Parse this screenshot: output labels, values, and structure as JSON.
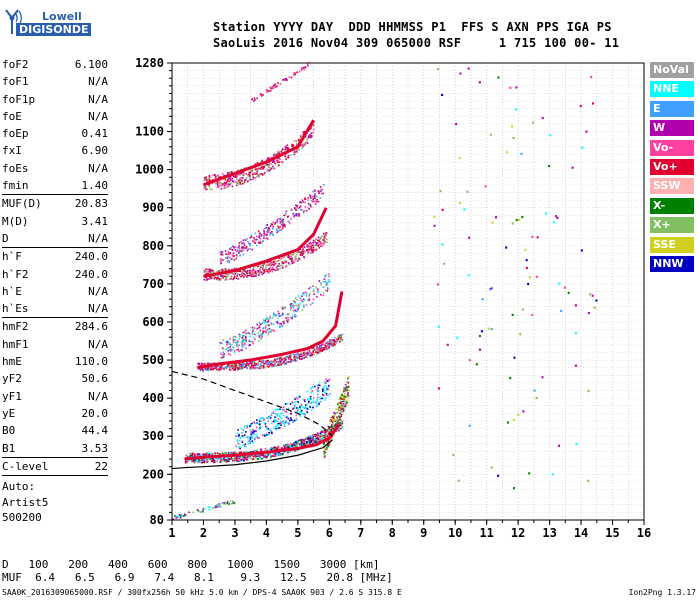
{
  "logo": {
    "line1": "Lowell",
    "line2": "DIGISONDE"
  },
  "header": {
    "line1": "Station YYYY DAY  DDD HHMMSS P1  FFS S AXN PPS IGA PS",
    "line2": "SaoLuis 2016 Nov04 309 065000 RSF     1 715 100 00- 11"
  },
  "params": {
    "group1": [
      {
        "k": "foF2",
        "v": "6.100"
      },
      {
        "k": "foF1",
        "v": "N/A"
      },
      {
        "k": "foF1p",
        "v": "N/A"
      },
      {
        "k": "foE",
        "v": "N/A"
      },
      {
        "k": "foEp",
        "v": "0.41"
      },
      {
        "k": "fxI",
        "v": "6.90"
      },
      {
        "k": "foEs",
        "v": "N/A"
      },
      {
        "k": "fmin",
        "v": "1.40"
      }
    ],
    "group2": [
      {
        "k": "MUF(D)",
        "v": "20.83"
      },
      {
        "k": "M(D)",
        "v": "3.41"
      },
      {
        "k": "D",
        "v": "N/A"
      }
    ],
    "group3": [
      {
        "k": "h`F",
        "v": "240.0"
      },
      {
        "k": "h`F2",
        "v": "240.0"
      },
      {
        "k": "h`E",
        "v": "N/A"
      },
      {
        "k": "h`Es",
        "v": "N/A"
      }
    ],
    "group4": [
      {
        "k": "hmF2",
        "v": "284.6"
      },
      {
        "k": "hmF1",
        "v": "N/A"
      },
      {
        "k": "hmE",
        "v": "110.0"
      },
      {
        "k": "yF2",
        "v": "50.6"
      },
      {
        "k": "yF1",
        "v": "N/A"
      },
      {
        "k": "yE",
        "v": "20.0"
      },
      {
        "k": "B0",
        "v": "44.4"
      },
      {
        "k": "B1",
        "v": "3.53"
      }
    ],
    "group5": [
      {
        "k": "C-level",
        "v": "22"
      }
    ],
    "auto": [
      "Auto:",
      "Artist5",
      "500200"
    ]
  },
  "legend": [
    {
      "label": "NoVal",
      "color": "#a0a0a0"
    },
    {
      "label": "NNE",
      "color": "#00ffff"
    },
    {
      "label": "E",
      "color": "#40a0ff"
    },
    {
      "label": "W",
      "color": "#b000b0"
    },
    {
      "label": "Vo-",
      "color": "#ff40a0"
    },
    {
      "label": "Vo+",
      "color": "#e00030"
    },
    {
      "label": "SSW",
      "color": "#ffb0b0"
    },
    {
      "label": "X-",
      "color": "#008000"
    },
    {
      "label": "X+",
      "color": "#80c060"
    },
    {
      "label": "SSE",
      "color": "#d0d020"
    },
    {
      "label": "NNW",
      "color": "#0000c0"
    }
  ],
  "muf_table": {
    "d_label": "D",
    "d_values": [
      "100",
      "200",
      "400",
      "600",
      "800",
      "1000",
      "1500",
      "3000"
    ],
    "d_unit": "[km]",
    "muf_label": "MUF",
    "muf_values": [
      "6.4",
      "6.5",
      "6.9",
      "7.4",
      "8.1",
      "9.3",
      "12.5",
      "20.8"
    ],
    "muf_unit": "[MHz]"
  },
  "footer": {
    "left": "SAA0K_2016309065000.RSF / 300fx256h 50 kHz 5.0 km / DPS-4 SAA0K 903 / 2.6 S 315.8 E",
    "right": "Ion2Png 1.3.17"
  },
  "chart_data": {
    "type": "scatter",
    "title": "",
    "xlabel": "",
    "ylabel": "",
    "xlim": [
      1,
      16
    ],
    "ylim": [
      80,
      1280
    ],
    "x_ticks": [
      1,
      2,
      3,
      4,
      5,
      6,
      7,
      8,
      9,
      10,
      11,
      12,
      13,
      14,
      15,
      16
    ],
    "y_ticks": [
      80,
      200,
      300,
      400,
      500,
      600,
      700,
      800,
      900,
      1000,
      1100,
      1280
    ],
    "grid": true,
    "traces": [
      {
        "name": "F2 1st hop",
        "color": "#e00030",
        "x": [
          1.4,
          2.0,
          3.0,
          4.0,
          5.0,
          5.6,
          6.0,
          6.3
        ],
        "y": [
          240,
          245,
          250,
          258,
          268,
          278,
          295,
          330
        ]
      },
      {
        "name": "F2 2nd hop",
        "color": "#e00030",
        "x": [
          1.8,
          2.5,
          3.5,
          4.5,
          5.3,
          5.8,
          6.2,
          6.4
        ],
        "y": [
          480,
          490,
          500,
          515,
          530,
          550,
          590,
          680
        ]
      },
      {
        "name": "F2 3rd hop",
        "color": "#e00030",
        "x": [
          2.0,
          3.0,
          4.0,
          5.0,
          5.5,
          5.9
        ],
        "y": [
          720,
          735,
          760,
          790,
          830,
          900
        ]
      },
      {
        "name": "F2 4th hop",
        "color": "#e00030",
        "x": [
          2.0,
          3.0,
          4.0,
          5.0,
          5.5
        ],
        "y": [
          960,
          990,
          1020,
          1060,
          1130
        ]
      }
    ],
    "profile_solid": {
      "x": [
        1.0,
        1.5,
        2.0,
        3.0,
        4.0,
        5.0,
        5.8,
        6.1
      ],
      "y": [
        215,
        218,
        220,
        225,
        235,
        250,
        270,
        290
      ]
    },
    "profile_dashed": {
      "x": [
        1.0,
        2.0,
        3.0,
        4.0,
        5.0,
        5.7,
        6.1
      ],
      "y": [
        470,
        450,
        420,
        390,
        360,
        330,
        300
      ]
    }
  }
}
